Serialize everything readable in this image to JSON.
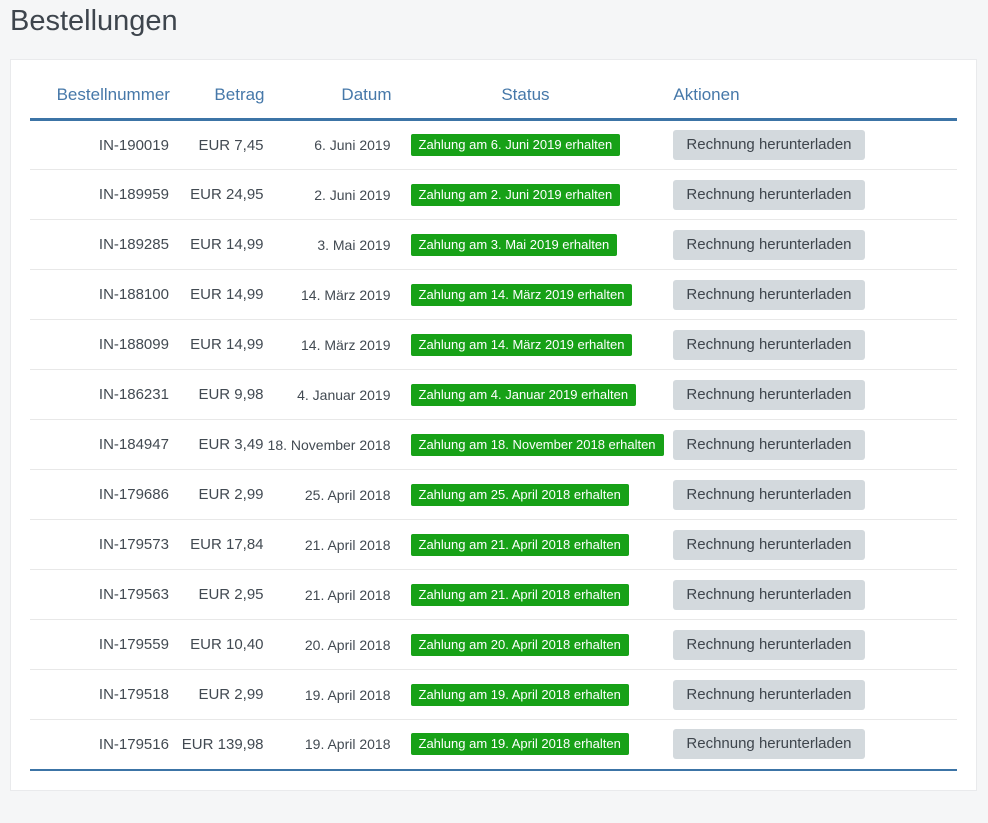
{
  "page": {
    "title": "Bestellungen"
  },
  "colors": {
    "accent_blue": "#3c74a6",
    "header_text_blue": "#4678a9",
    "badge_green": "#17a117",
    "button_gray": "#d3d9dd"
  },
  "table": {
    "headers": {
      "order": "Bestellnummer",
      "amount": "Betrag",
      "date": "Datum",
      "status": "Status",
      "actions": "Aktionen"
    },
    "rows": [
      {
        "order": "IN-190019",
        "amount": "EUR 7,45",
        "date": "6. Juni 2019",
        "status": "Zahlung am 6. Juni 2019 erhalten",
        "action": "Rechnung herunterladen"
      },
      {
        "order": "IN-189959",
        "amount": "EUR 24,95",
        "date": "2. Juni 2019",
        "status": "Zahlung am 2. Juni 2019 erhalten",
        "action": "Rechnung herunterladen"
      },
      {
        "order": "IN-189285",
        "amount": "EUR 14,99",
        "date": "3. Mai 2019",
        "status": "Zahlung am 3. Mai 2019 erhalten",
        "action": "Rechnung herunterladen"
      },
      {
        "order": "IN-188100",
        "amount": "EUR 14,99",
        "date": "14. März 2019",
        "status": "Zahlung am 14. März 2019 erhalten",
        "action": "Rechnung herunterladen"
      },
      {
        "order": "IN-188099",
        "amount": "EUR 14,99",
        "date": "14. März 2019",
        "status": "Zahlung am 14. März 2019 erhalten",
        "action": "Rechnung herunterladen"
      },
      {
        "order": "IN-186231",
        "amount": "EUR 9,98",
        "date": "4. Januar 2019",
        "status": "Zahlung am 4. Januar 2019 erhalten",
        "action": "Rechnung herunterladen"
      },
      {
        "order": "IN-184947",
        "amount": "EUR 3,49",
        "date": "18. November 2018",
        "status": "Zahlung am 18. November 2018 erhalten",
        "action": "Rechnung herunterladen"
      },
      {
        "order": "IN-179686",
        "amount": "EUR 2,99",
        "date": "25. April 2018",
        "status": "Zahlung am 25. April 2018 erhalten",
        "action": "Rechnung herunterladen"
      },
      {
        "order": "IN-179573",
        "amount": "EUR 17,84",
        "date": "21. April 2018",
        "status": "Zahlung am 21. April 2018 erhalten",
        "action": "Rechnung herunterladen"
      },
      {
        "order": "IN-179563",
        "amount": "EUR 2,95",
        "date": "21. April 2018",
        "status": "Zahlung am 21. April 2018 erhalten",
        "action": "Rechnung herunterladen"
      },
      {
        "order": "IN-179559",
        "amount": "EUR 10,40",
        "date": "20. April 2018",
        "status": "Zahlung am 20. April 2018 erhalten",
        "action": "Rechnung herunterladen"
      },
      {
        "order": "IN-179518",
        "amount": "EUR 2,99",
        "date": "19. April 2018",
        "status": "Zahlung am 19. April 2018 erhalten",
        "action": "Rechnung herunterladen"
      },
      {
        "order": "IN-179516",
        "amount": "EUR 139,98",
        "date": "19. April 2018",
        "status": "Zahlung am 19. April 2018 erhalten",
        "action": "Rechnung herunterladen"
      }
    ]
  }
}
